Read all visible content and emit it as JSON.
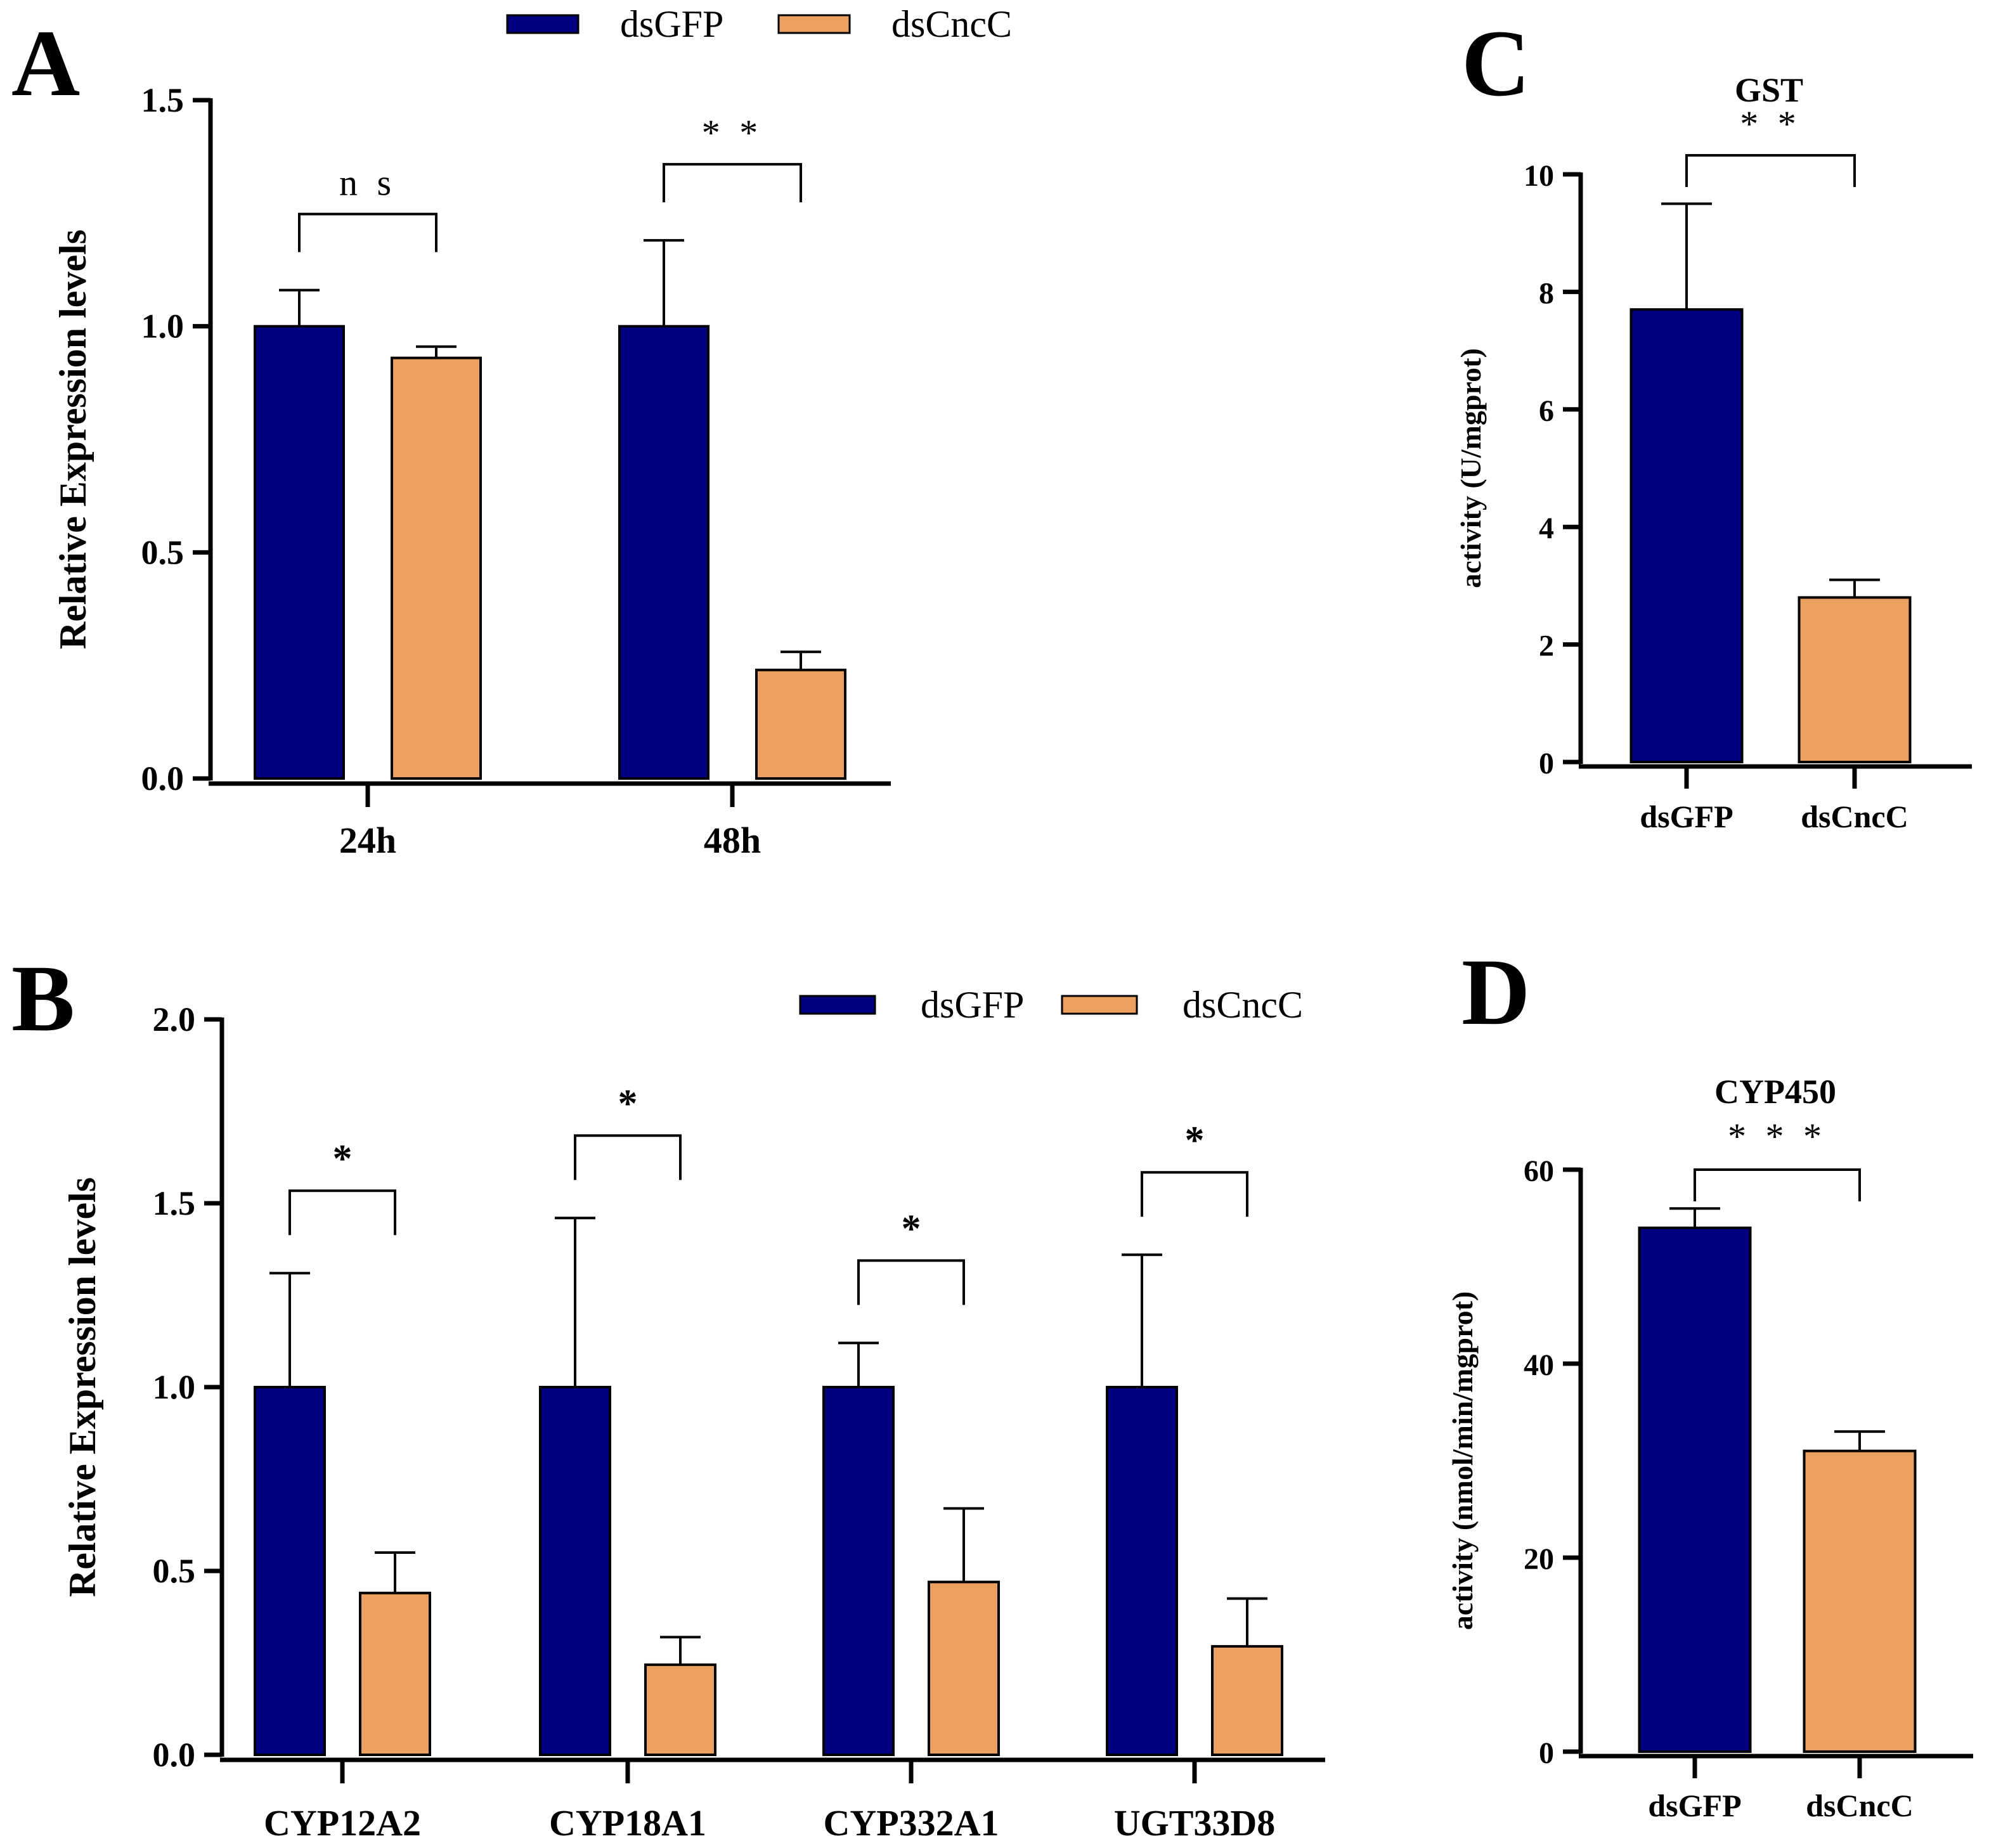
{
  "colors": {
    "dsGFP": "#000080",
    "dsCncC": "#ECA060"
  },
  "legend_labels": [
    "dsGFP",
    "dsCncC"
  ],
  "chart_data": [
    {
      "panel": "A",
      "type": "bar",
      "title": "",
      "ylabel": "Relative Expression levels",
      "xlabel": "",
      "ylim": [
        0,
        1.5
      ],
      "yticks": [
        "0.0",
        "0.5",
        "1.0",
        "1.5"
      ],
      "categories": [
        "24h",
        "48h"
      ],
      "series": [
        {
          "name": "dsGFP",
          "values": [
            1.0,
            1.0
          ],
          "errors": [
            0.08,
            0.19
          ]
        },
        {
          "name": "dsCncC",
          "values": [
            0.93,
            0.24
          ],
          "errors": [
            0.025,
            0.04
          ]
        }
      ],
      "significance": [
        "n s",
        "* *"
      ],
      "legend": "top"
    },
    {
      "panel": "B",
      "type": "bar",
      "title": "",
      "ylabel": "Relative Expression levels",
      "xlabel": "",
      "ylim": [
        0,
        2.0
      ],
      "yticks": [
        "0.0",
        "0.5",
        "1.0",
        "1.5",
        "2.0"
      ],
      "categories": [
        "CYP12A2",
        "CYP18A1",
        "CYP332A1",
        "UGT33D8"
      ],
      "series": [
        {
          "name": "dsGFP",
          "values": [
            1.0,
            1.0,
            1.0,
            1.0
          ],
          "errors": [
            0.31,
            0.46,
            0.12,
            0.36
          ]
        },
        {
          "name": "dsCncC",
          "values": [
            0.44,
            0.245,
            0.47,
            0.295
          ],
          "errors": [
            0.11,
            0.075,
            0.2,
            0.13
          ]
        }
      ],
      "significance": [
        "*",
        "*",
        "*",
        "*"
      ],
      "legend": "top-right"
    },
    {
      "panel": "C",
      "type": "bar",
      "title": "GST",
      "ylabel": "activity (U/mgprot)",
      "xlabel": "",
      "ylim": [
        0,
        10
      ],
      "yticks": [
        "0",
        "2",
        "4",
        "6",
        "8",
        "10"
      ],
      "categories": [
        "dsGFP",
        "dsCncC"
      ],
      "values": [
        7.7,
        2.8
      ],
      "errors": [
        1.8,
        0.3
      ],
      "significance": "* *"
    },
    {
      "panel": "D",
      "type": "bar",
      "title": "CYP450",
      "ylabel": "activity (nmol/min/mgprot)",
      "xlabel": "",
      "ylim": [
        0,
        60
      ],
      "yticks": [
        "0",
        "20",
        "40",
        "60"
      ],
      "categories": [
        "dsGFP",
        "dsCncC"
      ],
      "values": [
        54.0,
        31.0
      ],
      "errors": [
        2.0,
        2.0
      ],
      "significance": "* * *"
    }
  ]
}
